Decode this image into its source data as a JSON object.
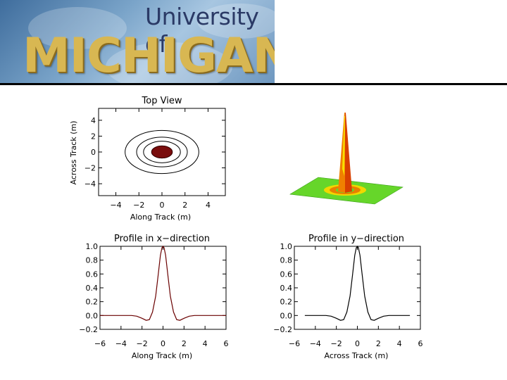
{
  "header": {
    "logo_line1": "University of",
    "logo_line2": "MICHIGAN"
  },
  "chart_data": [
    {
      "type": "contour",
      "title": "Top View",
      "xlabel": "Along Track (m)",
      "ylabel": "Across Track (m)",
      "xlim": [
        -5.5,
        5.5
      ],
      "ylim": [
        -5.5,
        5.5
      ],
      "xticks": [
        -4,
        -2,
        0,
        2,
        4
      ],
      "yticks": [
        -4,
        -2,
        0,
        2,
        4
      ],
      "contour_radii": [
        0.9,
        1.6,
        2.2,
        3.2
      ],
      "filled_core_radius": 0.9,
      "core_color": "#7a0d0d",
      "line_color": "#000000"
    },
    {
      "type": "surface",
      "description_colors": [
        "#f0d800",
        "#e08000",
        "#d03000",
        "#60d020"
      ]
    },
    {
      "type": "line",
      "title": "Profile in x−direction",
      "xlabel": "Along Track (m)",
      "ylabel": "",
      "xlim": [
        -6,
        6
      ],
      "ylim": [
        -0.2,
        1.0
      ],
      "xticks": [
        -6,
        -4,
        -2,
        0,
        2,
        4,
        6
      ],
      "yticks": [
        -0.2,
        0.0,
        0.2,
        0.4,
        0.6,
        0.8,
        1.0
      ],
      "ytick_labels": [
        "−0.2",
        "0.0",
        "0.2",
        "0.4",
        "0.6",
        "0.8",
        "1.0"
      ],
      "xtick_labels": [
        "−6",
        "−4",
        "−2",
        "0",
        "2",
        "4",
        "6"
      ],
      "line_color": "#6a0000",
      "x": [
        -6.0,
        -5.0,
        -4.0,
        -3.0,
        -2.5,
        -2.0,
        -1.6,
        -1.3,
        -1.0,
        -0.7,
        -0.45,
        -0.25,
        -0.1,
        0.0,
        0.1,
        0.25,
        0.45,
        0.7,
        1.0,
        1.3,
        1.6,
        2.0,
        2.5,
        3.0,
        4.0,
        5.0,
        6.0
      ],
      "y": [
        0.0,
        0.0,
        0.0,
        0.0,
        -0.01,
        -0.04,
        -0.07,
        -0.06,
        0.05,
        0.28,
        0.6,
        0.87,
        0.98,
        1.0,
        0.98,
        0.87,
        0.6,
        0.28,
        0.05,
        -0.06,
        -0.07,
        -0.04,
        -0.01,
        0.0,
        0.0,
        0.0,
        0.0
      ]
    },
    {
      "type": "line",
      "title": "Profile in y−direction",
      "xlabel": "Across Track (m)",
      "ylabel": "",
      "xlim": [
        -6,
        6
      ],
      "ylim": [
        -0.2,
        1.0
      ],
      "xticks": [
        -6,
        -4,
        -2,
        0,
        2,
        4,
        6
      ],
      "yticks": [
        -0.2,
        0.0,
        0.2,
        0.4,
        0.6,
        0.8,
        1.0
      ],
      "ytick_labels": [
        "−0.2",
        "0.0",
        "0.2",
        "0.4",
        "0.6",
        "0.8",
        "1.0"
      ],
      "xtick_labels": [
        "−6",
        "−4",
        "−2",
        "0",
        "2",
        "4",
        "6"
      ],
      "line_color": "#000000",
      "x": [
        -5.0,
        -4.0,
        -3.0,
        -2.5,
        -2.0,
        -1.6,
        -1.3,
        -1.0,
        -0.7,
        -0.45,
        -0.25,
        -0.1,
        0.0,
        0.1,
        0.25,
        0.45,
        0.7,
        1.0,
        1.3,
        1.6,
        2.0,
        2.5,
        3.0,
        4.0,
        5.0
      ],
      "y": [
        0.0,
        0.0,
        0.0,
        -0.01,
        -0.04,
        -0.07,
        -0.06,
        0.05,
        0.28,
        0.6,
        0.87,
        0.98,
        1.0,
        0.98,
        0.87,
        0.6,
        0.28,
        0.05,
        -0.06,
        -0.07,
        -0.04,
        -0.01,
        0.0,
        0.0,
        0.0
      ]
    }
  ]
}
